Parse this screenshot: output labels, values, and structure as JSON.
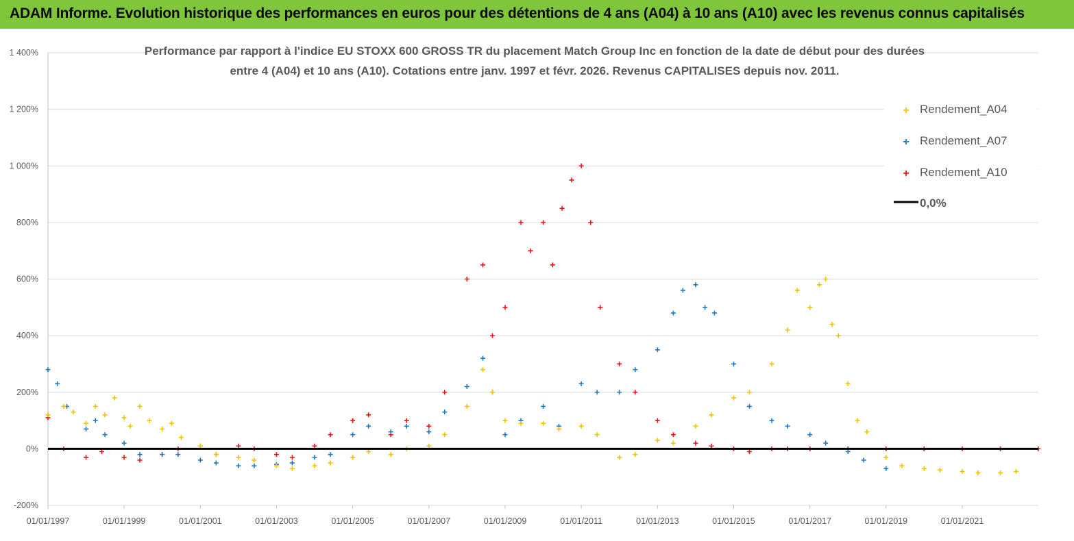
{
  "banner": {
    "title": "ADAM Informe. Evolution historique des performances en euros pour des détentions de 4 ans (A04) à 10 ans (A10) avec les revenus connus capitalisés"
  },
  "colors": {
    "banner": "#7fc63a",
    "A04": "#f5c000",
    "A07": "#1f78c8",
    "A10": "#ee1111",
    "zero": "#000000"
  },
  "chart_data": {
    "type": "scatter",
    "title": "Performance par rapport à l'indice EU STOXX 600 GROSS TR  du placement Match Group Inc en fonction de la date de début pour des durées entre 4 (A04) et 10 ans (A10). Cotations entre janv. 1997 et févr. 2026. Revenus CAPITALISES depuis nov. 2011.",
    "title_lines": [
      "Performance par rapport à l'indice EU STOXX 600 GROSS TR  du placement Match Group Inc en fonction de la date de début pour des durées",
      "entre 4 (A04) et 10 ans (A10). Cotations entre janv. 1997 et févr. 2026. Revenus CAPITALISES depuis nov. 2011."
    ],
    "xlabel": "",
    "ylabel": "",
    "x_ticks": [
      "01/01/1997",
      "01/01/1999",
      "01/01/2001",
      "01/01/2003",
      "01/01/2005",
      "01/01/2007",
      "01/01/2009",
      "01/01/2011",
      "01/01/2013",
      "01/01/2015",
      "01/01/2017",
      "01/01/2019",
      "01/01/2021"
    ],
    "y_ticks": [
      "-200%",
      "0%",
      "200%",
      "400%",
      "600%",
      "800%",
      "1 000%",
      "1 200%",
      "1 400%"
    ],
    "ylim": [
      -200,
      1400
    ],
    "xlim": [
      "1997-01-01",
      "2022-12-31"
    ],
    "grid": "horizontal",
    "legend_position": "top-right",
    "legend": [
      "Rendement_A04",
      "Rendement_A07",
      "Rendement_A10",
      "0,0%"
    ],
    "series": [
      {
        "name": "Rendement_A04",
        "marker": "+",
        "points": [
          [
            "1997-01-01",
            120
          ],
          [
            "1997-06-01",
            150
          ],
          [
            "1997-09-01",
            130
          ],
          [
            "1998-01-01",
            90
          ],
          [
            "1998-04-01",
            150
          ],
          [
            "1998-07-01",
            120
          ],
          [
            "1998-10-01",
            180
          ],
          [
            "1999-01-01",
            110
          ],
          [
            "1999-03-01",
            80
          ],
          [
            "1999-06-01",
            150
          ],
          [
            "1999-09-01",
            100
          ],
          [
            "2000-01-01",
            70
          ],
          [
            "2000-04-01",
            90
          ],
          [
            "2000-07-01",
            40
          ],
          [
            "2001-01-01",
            10
          ],
          [
            "2001-06-01",
            -20
          ],
          [
            "2002-01-01",
            -30
          ],
          [
            "2002-06-01",
            -40
          ],
          [
            "2003-01-01",
            -60
          ],
          [
            "2003-06-01",
            -70
          ],
          [
            "2004-01-01",
            -60
          ],
          [
            "2004-06-01",
            -50
          ],
          [
            "2005-01-01",
            -30
          ],
          [
            "2005-06-01",
            -10
          ],
          [
            "2006-01-01",
            -20
          ],
          [
            "2006-06-01",
            0
          ],
          [
            "2007-01-01",
            10
          ],
          [
            "2007-06-01",
            50
          ],
          [
            "2008-01-01",
            150
          ],
          [
            "2008-06-01",
            280
          ],
          [
            "2008-09-01",
            200
          ],
          [
            "2009-01-01",
            100
          ],
          [
            "2009-06-01",
            90
          ],
          [
            "2010-01-01",
            90
          ],
          [
            "2010-06-01",
            70
          ],
          [
            "2011-01-01",
            80
          ],
          [
            "2011-06-01",
            50
          ],
          [
            "2012-01-01",
            -30
          ],
          [
            "2012-06-01",
            -20
          ],
          [
            "2013-01-01",
            30
          ],
          [
            "2013-06-01",
            20
          ],
          [
            "2014-01-01",
            80
          ],
          [
            "2014-06-01",
            120
          ],
          [
            "2015-01-01",
            180
          ],
          [
            "2015-06-01",
            200
          ],
          [
            "2016-01-01",
            300
          ],
          [
            "2016-06-01",
            420
          ],
          [
            "2016-09-01",
            560
          ],
          [
            "2017-01-01",
            500
          ],
          [
            "2017-04-01",
            580
          ],
          [
            "2017-06-01",
            600
          ],
          [
            "2017-08-01",
            440
          ],
          [
            "2017-10-01",
            400
          ],
          [
            "2018-01-01",
            230
          ],
          [
            "2018-04-01",
            100
          ],
          [
            "2018-07-01",
            60
          ],
          [
            "2019-01-01",
            -30
          ],
          [
            "2019-06-01",
            -60
          ],
          [
            "2020-01-01",
            -70
          ],
          [
            "2020-06-01",
            -75
          ],
          [
            "2021-01-01",
            -80
          ],
          [
            "2021-06-01",
            -85
          ],
          [
            "2022-01-01",
            -85
          ],
          [
            "2022-06-01",
            -80
          ]
        ]
      },
      {
        "name": "Rendement_A07",
        "marker": "+",
        "points": [
          [
            "1997-01-01",
            280
          ],
          [
            "1997-04-01",
            230
          ],
          [
            "1997-07-01",
            150
          ],
          [
            "1998-01-01",
            70
          ],
          [
            "1998-04-01",
            100
          ],
          [
            "1998-07-01",
            50
          ],
          [
            "1999-01-01",
            20
          ],
          [
            "1999-06-01",
            -20
          ],
          [
            "2000-01-01",
            -20
          ],
          [
            "2000-06-01",
            -20
          ],
          [
            "2001-01-01",
            -40
          ],
          [
            "2001-06-01",
            -50
          ],
          [
            "2002-01-01",
            -60
          ],
          [
            "2002-06-01",
            -60
          ],
          [
            "2003-01-01",
            -55
          ],
          [
            "2003-06-01",
            -50
          ],
          [
            "2004-01-01",
            -30
          ],
          [
            "2004-06-01",
            -20
          ],
          [
            "2005-01-01",
            50
          ],
          [
            "2005-06-01",
            80
          ],
          [
            "2006-01-01",
            60
          ],
          [
            "2006-06-01",
            80
          ],
          [
            "2007-01-01",
            60
          ],
          [
            "2007-06-01",
            130
          ],
          [
            "2008-01-01",
            220
          ],
          [
            "2008-06-01",
            320
          ],
          [
            "2008-09-01",
            200
          ],
          [
            "2009-01-01",
            50
          ],
          [
            "2009-06-01",
            100
          ],
          [
            "2010-01-01",
            150
          ],
          [
            "2010-06-01",
            80
          ],
          [
            "2011-01-01",
            230
          ],
          [
            "2011-06-01",
            200
          ],
          [
            "2012-01-01",
            200
          ],
          [
            "2012-06-01",
            280
          ],
          [
            "2013-01-01",
            350
          ],
          [
            "2013-06-01",
            480
          ],
          [
            "2013-09-01",
            560
          ],
          [
            "2014-01-01",
            580
          ],
          [
            "2014-04-01",
            500
          ],
          [
            "2014-07-01",
            480
          ],
          [
            "2015-01-01",
            300
          ],
          [
            "2015-06-01",
            150
          ],
          [
            "2016-01-01",
            100
          ],
          [
            "2016-06-01",
            80
          ],
          [
            "2017-01-01",
            50
          ],
          [
            "2017-06-01",
            20
          ],
          [
            "2018-01-01",
            -10
          ],
          [
            "2018-06-01",
            -40
          ],
          [
            "2019-01-01",
            -70
          ]
        ]
      },
      {
        "name": "Rendement_A10",
        "marker": "+",
        "points": [
          [
            "1997-01-01",
            110
          ],
          [
            "1997-06-01",
            0
          ],
          [
            "1998-01-01",
            -30
          ],
          [
            "1998-06-01",
            -10
          ],
          [
            "1999-01-01",
            -30
          ],
          [
            "1999-06-01",
            -40
          ],
          [
            "2000-01-01",
            -20
          ],
          [
            "2000-06-01",
            0
          ],
          [
            "2001-01-01",
            10
          ],
          [
            "2001-06-01",
            -20
          ],
          [
            "2002-01-01",
            10
          ],
          [
            "2002-06-01",
            0
          ],
          [
            "2003-01-01",
            -20
          ],
          [
            "2003-06-01",
            -30
          ],
          [
            "2004-01-01",
            10
          ],
          [
            "2004-06-01",
            50
          ],
          [
            "2005-01-01",
            100
          ],
          [
            "2005-06-01",
            120
          ],
          [
            "2006-01-01",
            50
          ],
          [
            "2006-06-01",
            100
          ],
          [
            "2007-01-01",
            80
          ],
          [
            "2007-06-01",
            200
          ],
          [
            "2008-01-01",
            600
          ],
          [
            "2008-06-01",
            650
          ],
          [
            "2008-09-01",
            400
          ],
          [
            "2009-01-01",
            500
          ],
          [
            "2009-06-01",
            800
          ],
          [
            "2009-09-01",
            700
          ],
          [
            "2010-01-01",
            800
          ],
          [
            "2010-04-01",
            650
          ],
          [
            "2010-07-01",
            850
          ],
          [
            "2010-10-01",
            950
          ],
          [
            "2011-01-01",
            1000
          ],
          [
            "2011-04-01",
            800
          ],
          [
            "2011-07-01",
            500
          ],
          [
            "2012-01-01",
            300
          ],
          [
            "2012-06-01",
            200
          ],
          [
            "2013-01-01",
            100
          ],
          [
            "2013-06-01",
            50
          ],
          [
            "2014-01-01",
            20
          ],
          [
            "2014-06-01",
            10
          ],
          [
            "2015-01-01",
            0
          ],
          [
            "2015-06-01",
            -10
          ],
          [
            "2016-01-01",
            0
          ],
          [
            "2016-06-01",
            0
          ],
          [
            "2017-01-01",
            0
          ],
          [
            "2018-01-01",
            0
          ],
          [
            "2019-01-01",
            0
          ],
          [
            "2020-01-01",
            0
          ],
          [
            "2021-01-01",
            0
          ],
          [
            "2022-01-01",
            0
          ],
          [
            "2022-12-31",
            0
          ]
        ]
      },
      {
        "name": "0,0%",
        "line": [
          [
            "1997-01-01",
            0
          ],
          [
            "2022-12-31",
            0
          ]
        ]
      }
    ]
  }
}
